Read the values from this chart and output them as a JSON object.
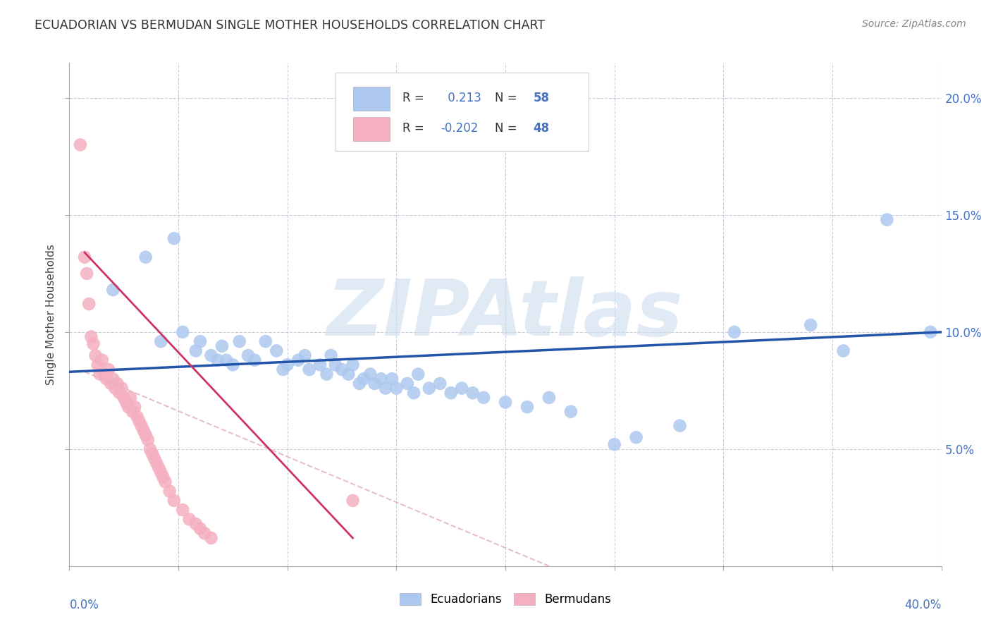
{
  "title": "ECUADORIAN VS BERMUDAN SINGLE MOTHER HOUSEHOLDS CORRELATION CHART",
  "source": "Source: ZipAtlas.com",
  "ylabel": "Single Mother Households",
  "yticks": [
    "5.0%",
    "10.0%",
    "15.0%",
    "20.0%"
  ],
  "ytick_vals": [
    0.05,
    0.1,
    0.15,
    0.2
  ],
  "xlim": [
    0.0,
    0.4
  ],
  "ylim": [
    0.0,
    0.215
  ],
  "blue_R": "0.213",
  "blue_N": "58",
  "pink_R": "-0.202",
  "pink_N": "48",
  "blue_color": "#adc8ef",
  "pink_color": "#f4afc0",
  "blue_line_color": "#2255aa",
  "pink_line_color": "#cc3366",
  "pink_line_dash_color": "#e0b0c0",
  "watermark": "ZIPAtlas",
  "watermark_color": "#ccddef",
  "legend_label_blue": "Ecuadorians",
  "legend_label_pink": "Bermudans",
  "blue_scatter_x": [
    0.02,
    0.035,
    0.042,
    0.048,
    0.052,
    0.058,
    0.06,
    0.065,
    0.068,
    0.07,
    0.072,
    0.075,
    0.078,
    0.082,
    0.085,
    0.09,
    0.095,
    0.098,
    0.1,
    0.105,
    0.108,
    0.11,
    0.115,
    0.118,
    0.12,
    0.122,
    0.125,
    0.128,
    0.13,
    0.133,
    0.135,
    0.138,
    0.14,
    0.143,
    0.145,
    0.148,
    0.15,
    0.155,
    0.158,
    0.16,
    0.165,
    0.17,
    0.175,
    0.18,
    0.185,
    0.19,
    0.2,
    0.21,
    0.22,
    0.23,
    0.25,
    0.26,
    0.28,
    0.305,
    0.34,
    0.355,
    0.375,
    0.395
  ],
  "blue_scatter_y": [
    0.118,
    0.132,
    0.096,
    0.14,
    0.1,
    0.092,
    0.096,
    0.09,
    0.088,
    0.094,
    0.088,
    0.086,
    0.096,
    0.09,
    0.088,
    0.096,
    0.092,
    0.084,
    0.086,
    0.088,
    0.09,
    0.084,
    0.086,
    0.082,
    0.09,
    0.086,
    0.084,
    0.082,
    0.086,
    0.078,
    0.08,
    0.082,
    0.078,
    0.08,
    0.076,
    0.08,
    0.076,
    0.078,
    0.074,
    0.082,
    0.076,
    0.078,
    0.074,
    0.076,
    0.074,
    0.072,
    0.07,
    0.068,
    0.072,
    0.066,
    0.052,
    0.055,
    0.06,
    0.1,
    0.103,
    0.092,
    0.148,
    0.1
  ],
  "pink_scatter_x": [
    0.005,
    0.007,
    0.008,
    0.009,
    0.01,
    0.011,
    0.012,
    0.013,
    0.014,
    0.015,
    0.016,
    0.017,
    0.018,
    0.019,
    0.02,
    0.021,
    0.022,
    0.023,
    0.024,
    0.025,
    0.026,
    0.027,
    0.028,
    0.029,
    0.03,
    0.031,
    0.032,
    0.033,
    0.034,
    0.035,
    0.036,
    0.037,
    0.038,
    0.039,
    0.04,
    0.041,
    0.042,
    0.043,
    0.044,
    0.046,
    0.048,
    0.052,
    0.055,
    0.058,
    0.06,
    0.062,
    0.065,
    0.13
  ],
  "pink_scatter_y": [
    0.18,
    0.132,
    0.125,
    0.112,
    0.098,
    0.095,
    0.09,
    0.086,
    0.082,
    0.088,
    0.082,
    0.08,
    0.084,
    0.078,
    0.08,
    0.076,
    0.078,
    0.074,
    0.076,
    0.072,
    0.07,
    0.068,
    0.072,
    0.066,
    0.068,
    0.064,
    0.062,
    0.06,
    0.058,
    0.056,
    0.054,
    0.05,
    0.048,
    0.046,
    0.044,
    0.042,
    0.04,
    0.038,
    0.036,
    0.032,
    0.028,
    0.024,
    0.02,
    0.018,
    0.016,
    0.014,
    0.012,
    0.028
  ],
  "blue_line_x": [
    0.0,
    0.4
  ],
  "blue_line_y": [
    0.083,
    0.1
  ],
  "pink_solid_line_x": [
    0.007,
    0.13
  ],
  "pink_solid_line_y": [
    0.134,
    0.012
  ],
  "pink_dash_line_x": [
    0.007,
    0.22
  ],
  "pink_dash_line_y": [
    0.083,
    0.0
  ]
}
